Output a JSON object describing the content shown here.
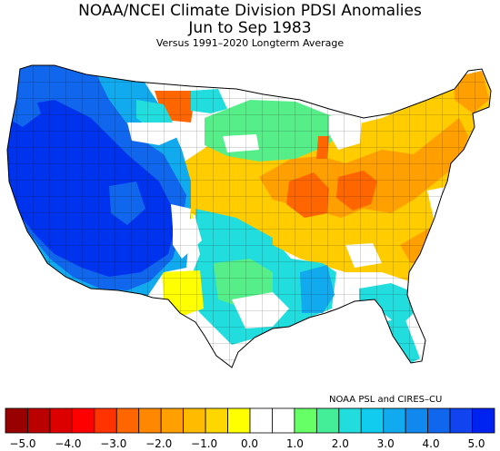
{
  "title": {
    "line1": "NOAA/NCEI Climate Division PDSI Anomalies",
    "line2": "Jun to Sep 1983",
    "line3": "Versus 1991–2020 Longterm Average"
  },
  "credit": "NOAA PSL and CIRES–CU",
  "legend": {
    "colors": [
      "#990000",
      "#bb0000",
      "#dd0000",
      "#ff0000",
      "#ff3300",
      "#ff6600",
      "#ff8800",
      "#ff9f00",
      "#ffbb00",
      "#ffd700",
      "#ffff00",
      "#ffffff",
      "#ffffff",
      "#66ff66",
      "#44ee99",
      "#22dddd",
      "#11ccee",
      "#11aaee",
      "#1188ee",
      "#1166ee",
      "#1144ee",
      "#0022ee"
    ],
    "tick_labels": [
      "−5.0",
      "−4.0",
      "−3.0",
      "−2.0",
      "−1.0",
      "0.0",
      "1.0",
      "2.0",
      "3.0",
      "4.0",
      "5.0"
    ]
  },
  "palette": {
    "strong_wet": "#0033ee",
    "wet": "#1166ee",
    "moderate_wet": "#11aaee",
    "slight_wet": "#22dddd",
    "light_wet": "#55ee88",
    "near_normal": "#ffffff",
    "slight_dry": "#ffff00",
    "mild_dry": "#ffcc00",
    "moderate_dry": "#ff9f00",
    "strong_dry": "#ff6600",
    "border": "#000000"
  }
}
